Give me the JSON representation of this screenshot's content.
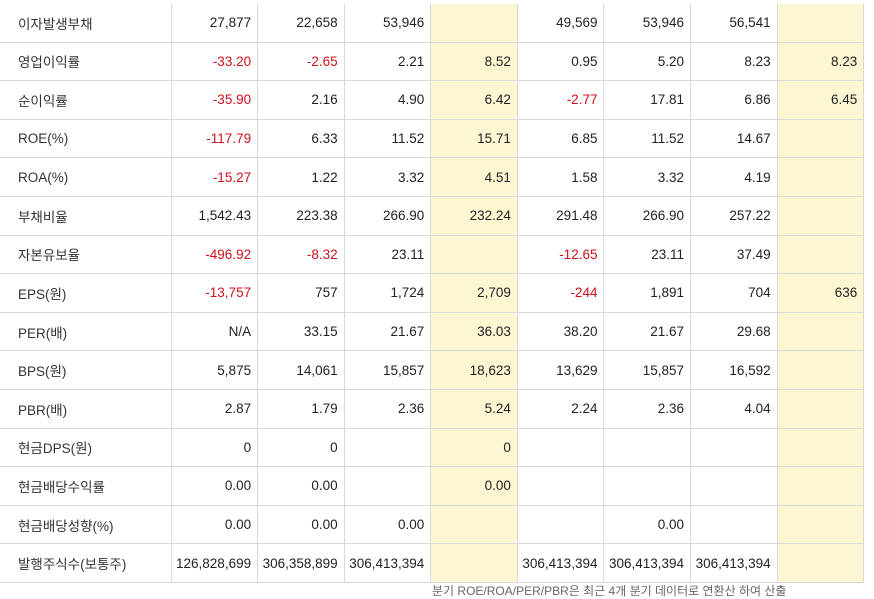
{
  "rows": [
    {
      "label": "이자발생부채",
      "cells": [
        "27,877",
        "22,658",
        "53,946",
        "",
        "49,569",
        "53,946",
        "56,541",
        ""
      ]
    },
    {
      "label": "영업이익률",
      "cells": [
        "-33.20",
        "-2.65",
        "2.21",
        "8.52",
        "0.95",
        "5.20",
        "8.23",
        "8.23"
      ]
    },
    {
      "label": "순이익률",
      "cells": [
        "-35.90",
        "2.16",
        "4.90",
        "6.42",
        "-2.77",
        "17.81",
        "6.86",
        "6.45"
      ]
    },
    {
      "label": "ROE(%)",
      "cells": [
        "-117.79",
        "6.33",
        "11.52",
        "15.71",
        "6.85",
        "11.52",
        "14.67",
        ""
      ]
    },
    {
      "label": "ROA(%)",
      "cells": [
        "-15.27",
        "1.22",
        "3.32",
        "4.51",
        "1.58",
        "3.32",
        "4.19",
        ""
      ]
    },
    {
      "label": "부채비율",
      "cells": [
        "1,542.43",
        "223.38",
        "266.90",
        "232.24",
        "291.48",
        "266.90",
        "257.22",
        ""
      ]
    },
    {
      "label": "자본유보율",
      "cells": [
        "-496.92",
        "-8.32",
        "23.11",
        "",
        "-12.65",
        "23.11",
        "37.49",
        ""
      ]
    },
    {
      "label": "EPS(원)",
      "cells": [
        "-13,757",
        "757",
        "1,724",
        "2,709",
        "-244",
        "1,891",
        "704",
        "636"
      ]
    },
    {
      "label": "PER(배)",
      "cells": [
        "N/A",
        "33.15",
        "21.67",
        "36.03",
        "38.20",
        "21.67",
        "29.68",
        ""
      ]
    },
    {
      "label": "BPS(원)",
      "cells": [
        "5,875",
        "14,061",
        "15,857",
        "18,623",
        "13,629",
        "15,857",
        "16,592",
        ""
      ]
    },
    {
      "label": "PBR(배)",
      "cells": [
        "2.87",
        "1.79",
        "2.36",
        "5.24",
        "2.24",
        "2.36",
        "4.04",
        ""
      ]
    },
    {
      "label": "현금DPS(원)",
      "cells": [
        "0",
        "0",
        "",
        "0",
        "",
        "",
        "",
        ""
      ]
    },
    {
      "label": "현금배당수익률",
      "cells": [
        "0.00",
        "0.00",
        "",
        "0.00",
        "",
        "",
        "",
        ""
      ]
    },
    {
      "label": "현금배당성향(%)",
      "cells": [
        "0.00",
        "0.00",
        "0.00",
        "",
        "",
        "0.00",
        "",
        ""
      ]
    },
    {
      "label": "발행주식수(보통주)",
      "cells": [
        "126,828,699",
        "306,358,899",
        "306,413,394",
        "",
        "306,413,394",
        "306,413,394",
        "306,413,394",
        ""
      ]
    }
  ],
  "highlight_columns": [
    3,
    7
  ],
  "colors": {
    "highlight": "#fdf6d2",
    "negative": "#d0101b",
    "border": "#d9d9d9"
  },
  "footnote": "분기 ROE/ROA/PER/PBR은 최근 4개 분기 데이터로 연환산 하여 산출"
}
